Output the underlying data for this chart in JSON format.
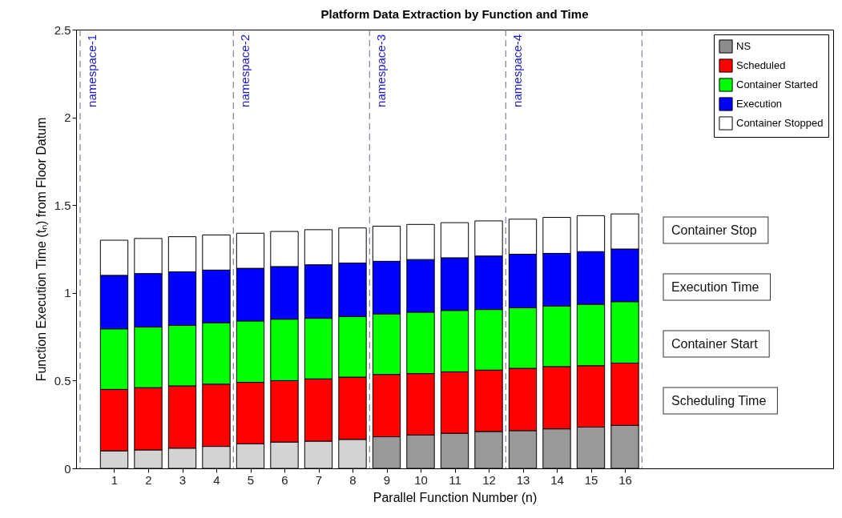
{
  "chart_data": {
    "type": "bar",
    "stacked": true,
    "title": "Platform Data Extraction by Function and Time",
    "xlabel": "Parallel Function Number (n)",
    "ylabel": "Function Execution Time (tₙ) from Floor Datum",
    "x": [
      1,
      2,
      3,
      4,
      5,
      6,
      7,
      8,
      9,
      10,
      11,
      12,
      13,
      14,
      15,
      16
    ],
    "xlim": [
      0,
      22
    ],
    "xticks": [
      1,
      2,
      3,
      4,
      5,
      6,
      7,
      8,
      9,
      10,
      11,
      12,
      13,
      14,
      15,
      16
    ],
    "ylim": [
      0,
      2.5
    ],
    "yticks": [
      0,
      0.5,
      1,
      1.5,
      2,
      2.5
    ],
    "series": [
      {
        "name": "NS",
        "color": "#8c8c8c",
        "colors": [
          "#d3d3d3",
          "#d3d3d3",
          "#d3d3d3",
          "#d3d3d3",
          "#d3d3d3",
          "#d3d3d3",
          "#d3d3d3",
          "#d3d3d3",
          "#999999",
          "#999999",
          "#999999",
          "#999999",
          "#999999",
          "#999999",
          "#999999",
          "#999999"
        ],
        "values": [
          0.1,
          0.105,
          0.115,
          0.125,
          0.14,
          0.15,
          0.155,
          0.165,
          0.18,
          0.19,
          0.2,
          0.21,
          0.215,
          0.225,
          0.235,
          0.245
        ]
      },
      {
        "name": "Scheduled",
        "color": "#ff0000",
        "values": [
          0.35,
          0.355,
          0.355,
          0.355,
          0.35,
          0.35,
          0.355,
          0.355,
          0.355,
          0.35,
          0.35,
          0.35,
          0.355,
          0.355,
          0.35,
          0.355
        ]
      },
      {
        "name": "Container Started",
        "color": "#00ff00",
        "values": [
          0.345,
          0.345,
          0.345,
          0.35,
          0.35,
          0.35,
          0.345,
          0.345,
          0.345,
          0.35,
          0.35,
          0.345,
          0.345,
          0.345,
          0.35,
          0.35
        ]
      },
      {
        "name": "Execution",
        "color": "#0000ff",
        "values": [
          0.305,
          0.305,
          0.305,
          0.3,
          0.3,
          0.3,
          0.305,
          0.305,
          0.3,
          0.3,
          0.3,
          0.305,
          0.305,
          0.3,
          0.3,
          0.3
        ]
      },
      {
        "name": "Container Stopped",
        "color": "#ffffff",
        "values": [
          0.2,
          0.2,
          0.2,
          0.2,
          0.2,
          0.2,
          0.2,
          0.2,
          0.2,
          0.2,
          0.2,
          0.2,
          0.2,
          0.205,
          0.205,
          0.2
        ]
      }
    ],
    "ref_lines": [
      {
        "axis": "x",
        "value": 0,
        "label": "namespace-1",
        "color": "#6a6a80",
        "line_style": "dashed"
      },
      {
        "axis": "x",
        "value": 4.5,
        "label": "namespace-2",
        "color": "#6a6a80",
        "line_style": "dashed"
      },
      {
        "axis": "x",
        "value": 8.5,
        "label": "namespace-3",
        "color": "#6a6a80",
        "line_style": "dashed"
      },
      {
        "axis": "x",
        "value": 12.5,
        "label": "namespace-4",
        "color": "#6a6a80",
        "line_style": "dashed"
      },
      {
        "axis": "x",
        "value": 16.5,
        "label": null,
        "color": "#6a6a80",
        "line_style": "dashed"
      }
    ],
    "annotations": [
      "Container Stop",
      "Execution Time",
      "Container Start",
      "Scheduling Time"
    ],
    "legend": "top right",
    "grid": false
  }
}
